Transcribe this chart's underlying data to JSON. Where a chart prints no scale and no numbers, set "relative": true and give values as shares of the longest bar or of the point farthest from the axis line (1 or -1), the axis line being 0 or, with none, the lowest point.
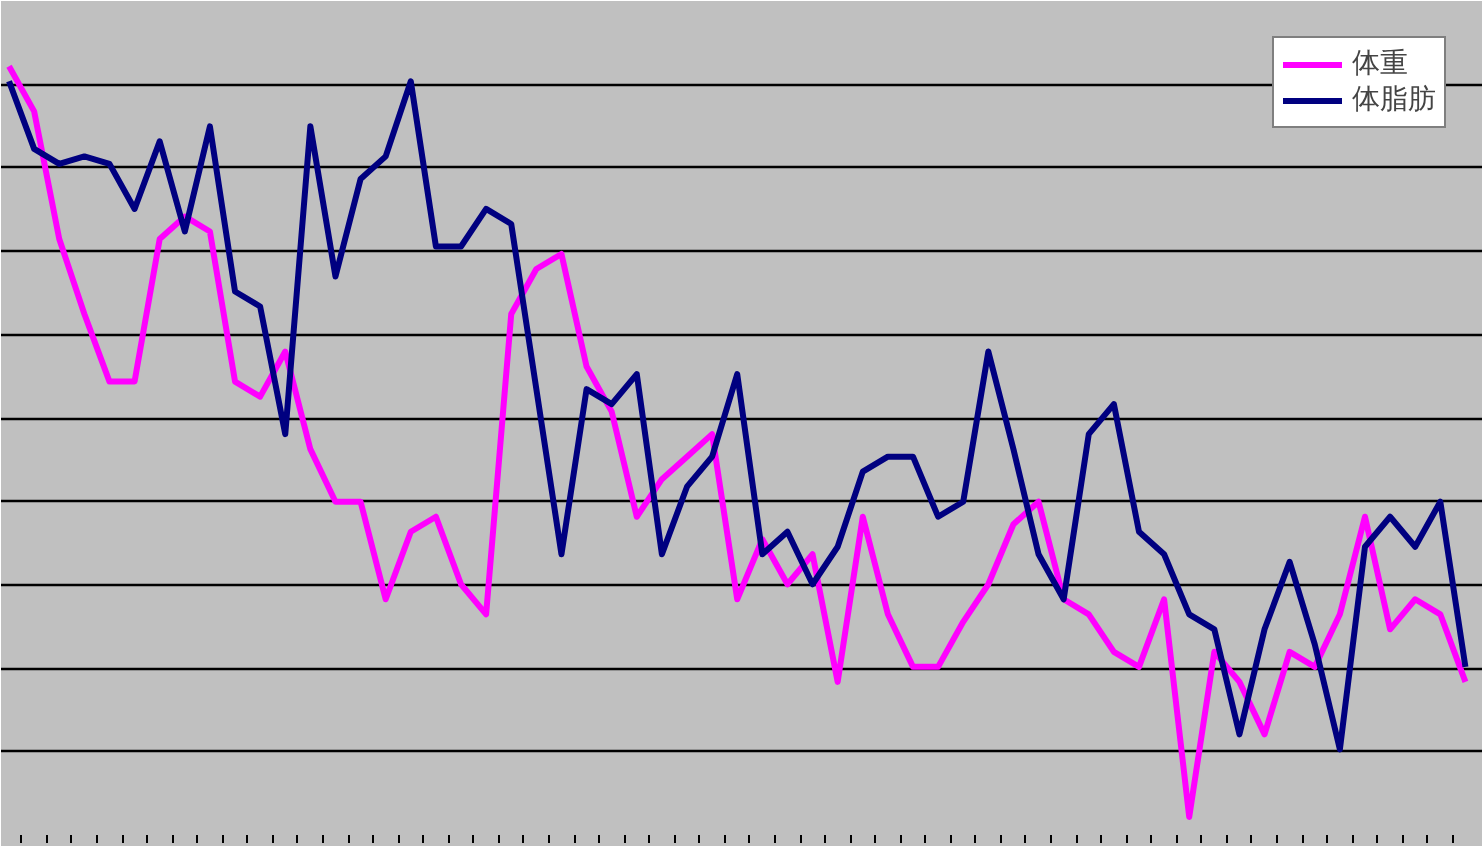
{
  "chart_data": {
    "type": "line",
    "relative": true,
    "grid": "y",
    "legend": "top right",
    "marker": "none",
    "line_style": "solid",
    "categories": [
      null,
      null,
      null,
      null,
      null,
      null,
      null,
      null,
      null,
      null,
      null,
      null,
      null,
      null,
      null,
      null,
      null,
      null,
      null,
      null,
      null,
      null,
      null,
      null,
      null,
      null,
      null,
      null,
      null,
      null,
      null,
      null,
      null,
      null,
      null,
      null,
      null,
      null,
      null,
      null,
      null,
      null,
      null,
      null,
      null,
      null,
      null,
      null,
      null,
      null,
      null,
      null,
      null,
      null,
      null,
      null,
      null,
      null,
      null
    ],
    "series": [
      {
        "name": "体重",
        "color": "#ff00ff",
        "values": [
          1.0,
          0.94,
          0.77,
          0.67,
          0.58,
          0.58,
          0.77,
          0.8,
          0.78,
          0.58,
          0.56,
          0.62,
          0.49,
          0.42,
          0.42,
          0.29,
          0.38,
          0.4,
          0.31,
          0.27,
          0.67,
          0.73,
          0.75,
          0.6,
          0.54,
          0.4,
          0.45,
          0.48,
          0.51,
          0.29,
          0.37,
          0.31,
          0.35,
          0.18,
          0.4,
          0.27,
          0.2,
          0.2,
          0.26,
          0.31,
          0.39,
          0.42,
          0.29,
          0.27,
          0.22,
          0.2,
          0.29,
          0.0,
          0.22,
          0.18,
          0.11,
          0.22,
          0.2,
          0.27,
          0.4,
          0.25,
          0.29,
          0.27,
          0.18
        ]
      },
      {
        "name": "体脂肪",
        "color": "#000080",
        "values": [
          0.98,
          0.89,
          0.87,
          0.88,
          0.87,
          0.81,
          0.9,
          0.78,
          0.92,
          0.7,
          0.68,
          0.51,
          0.92,
          0.72,
          0.85,
          0.88,
          0.98,
          0.76,
          0.76,
          0.81,
          0.79,
          0.57,
          0.35,
          0.57,
          0.55,
          0.59,
          0.35,
          0.44,
          0.48,
          0.59,
          0.35,
          0.38,
          0.31,
          0.36,
          0.46,
          0.48,
          0.48,
          0.4,
          0.42,
          0.62,
          0.49,
          0.35,
          0.29,
          0.51,
          0.55,
          0.38,
          0.35,
          0.27,
          0.25,
          0.11,
          0.25,
          0.34,
          0.23,
          0.09,
          0.36,
          0.4,
          0.36,
          0.42,
          0.2
        ]
      }
    ]
  }
}
